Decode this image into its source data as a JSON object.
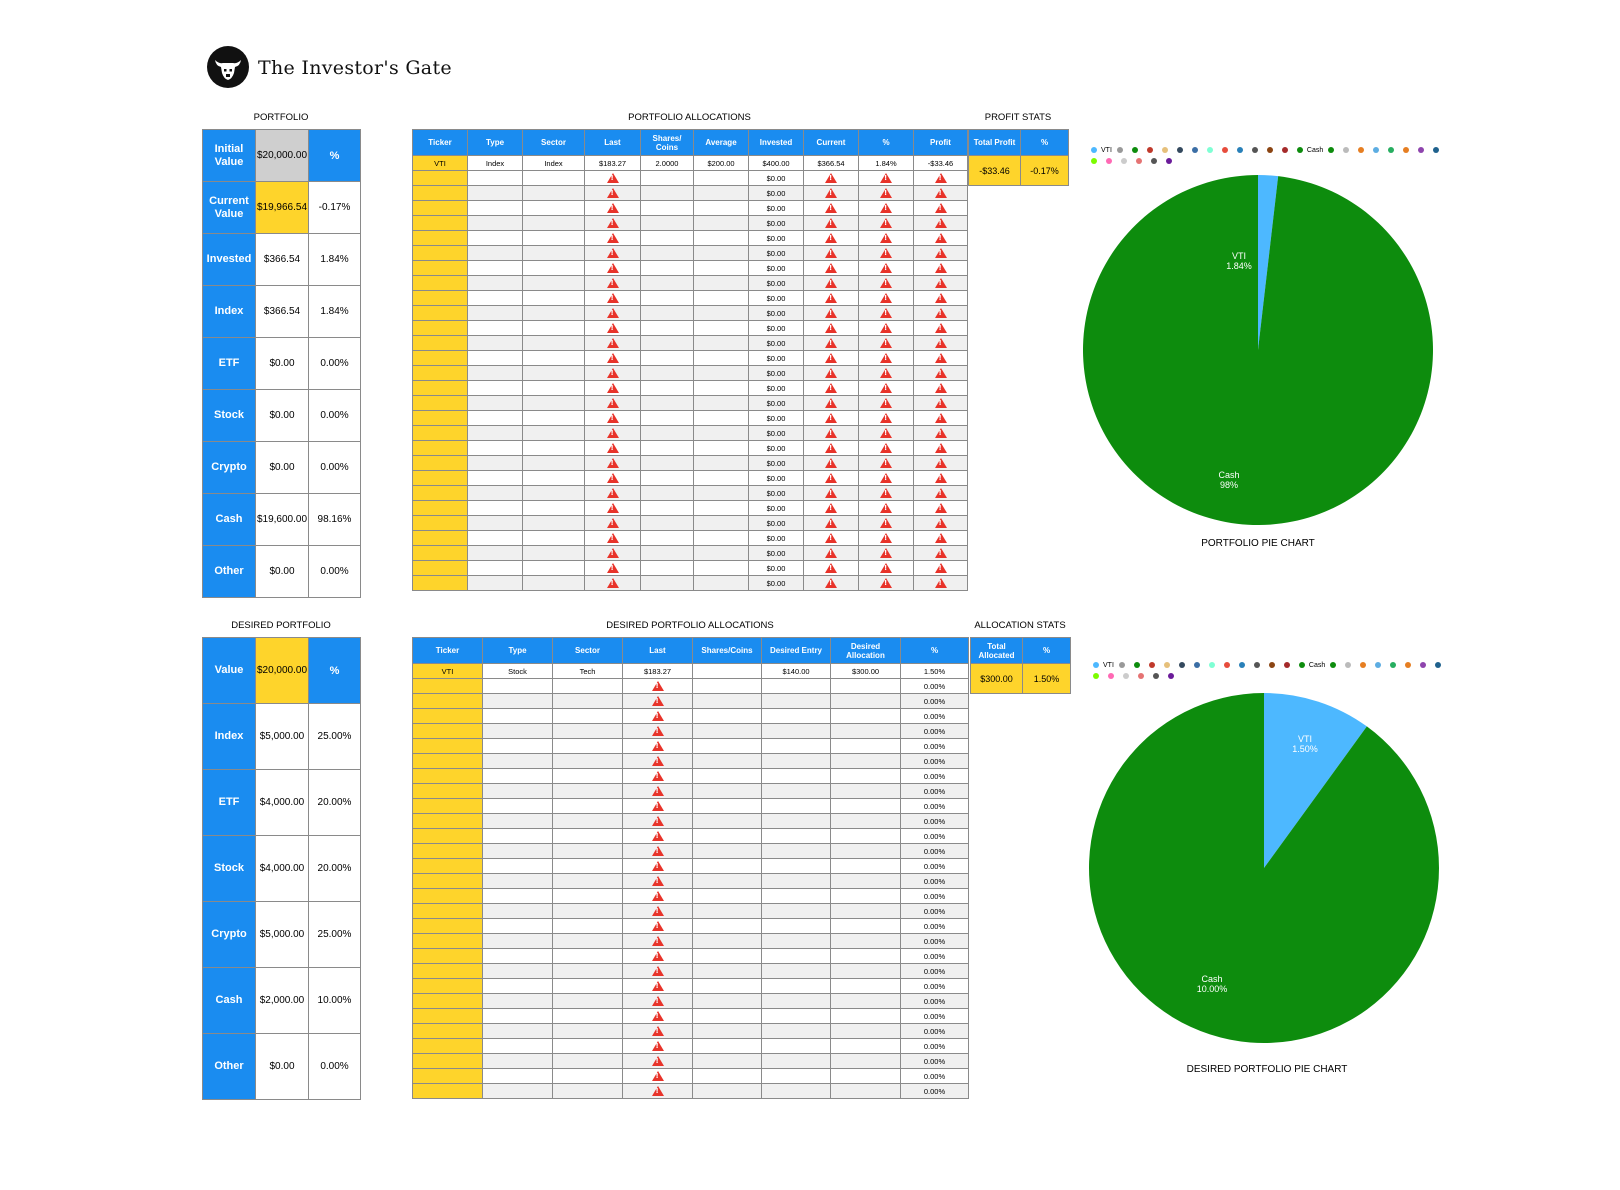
{
  "brand": {
    "name": "The Investor's Gate"
  },
  "colors": {
    "header_blue": "#1a8cf0",
    "highlight_yellow": "#fed42b",
    "initial_gray": "#cfcfcf",
    "pie_cash": "#0d8c0d",
    "pie_vti": "#4db8ff",
    "warning_red": "#e8332a"
  },
  "portfolio": {
    "title": "PORTFOLIO",
    "pct_header": "%",
    "rows": [
      {
        "label": "Initial Value",
        "value": "$20,000.00",
        "pct": ""
      },
      {
        "label": "Current Value",
        "value": "$19,966.54",
        "pct": "-0.17%"
      },
      {
        "label": "Invested",
        "value": "$366.54",
        "pct": "1.84%"
      },
      {
        "label": "Index",
        "value": "$366.54",
        "pct": "1.84%"
      },
      {
        "label": "ETF",
        "value": "$0.00",
        "pct": "0.00%"
      },
      {
        "label": "Stock",
        "value": "$0.00",
        "pct": "0.00%"
      },
      {
        "label": "Crypto",
        "value": "$0.00",
        "pct": "0.00%"
      },
      {
        "label": "Cash",
        "value": "$19,600.00",
        "pct": "98.16%"
      },
      {
        "label": "Other",
        "value": "$0.00",
        "pct": "0.00%"
      }
    ]
  },
  "allocations": {
    "title": "PORTFOLIO ALLOCATIONS",
    "headers": [
      "Ticker",
      "Type",
      "Sector",
      "Last",
      "Shares/ Coins",
      "Average",
      "Invested",
      "Current",
      "%",
      "Profit"
    ],
    "first_row": [
      "VTI",
      "Index",
      "Index",
      "$183.27",
      "2.0000",
      "$200.00",
      "$400.00",
      "$366.54",
      "1.84%",
      "-$33.46"
    ],
    "empty_invested": "$0.00",
    "empty_row_count": 28
  },
  "profit_stats": {
    "title": "PROFIT STATS",
    "headers": [
      "Total Profit",
      "%"
    ],
    "values": [
      "-$33.46",
      "-0.17%"
    ]
  },
  "pie1": {
    "caption": "PORTFOLIO PIE CHART",
    "legend": [
      "VTI",
      "Cash"
    ],
    "slices": [
      {
        "name": "VTI",
        "label": "VTI",
        "pct_label": "1.84%",
        "value": 1.84,
        "color": "#4db8ff"
      },
      {
        "name": "Cash",
        "label": "Cash",
        "pct_label": "98%",
        "value": 98.16,
        "color": "#0d8c0d"
      }
    ]
  },
  "desired": {
    "title": "DESIRED PORTFOLIO",
    "pct_header": "%",
    "rows": [
      {
        "label": "Value",
        "value": "$20,000.00",
        "pct": ""
      },
      {
        "label": "Index",
        "value": "$5,000.00",
        "pct": "25.00%"
      },
      {
        "label": "ETF",
        "value": "$4,000.00",
        "pct": "20.00%"
      },
      {
        "label": "Stock",
        "value": "$4,000.00",
        "pct": "20.00%"
      },
      {
        "label": "Crypto",
        "value": "$5,000.00",
        "pct": "25.00%"
      },
      {
        "label": "Cash",
        "value": "$2,000.00",
        "pct": "10.00%"
      },
      {
        "label": "Other",
        "value": "$0.00",
        "pct": "0.00%"
      }
    ]
  },
  "desired_alloc": {
    "title": "DESIRED PORTFOLIO ALLOCATIONS",
    "headers": [
      "Ticker",
      "Type",
      "Sector",
      "Last",
      "Shares/Coins",
      "Desired Entry",
      "Desired Allocation",
      "%"
    ],
    "first_row": [
      "VTI",
      "Stock",
      "Tech",
      "$183.27",
      "",
      "$140.00",
      "$300.00",
      "1.50%"
    ],
    "empty_pct": "0.00%",
    "empty_row_count": 28
  },
  "allocation_stats": {
    "title": "ALLOCATION STATS",
    "headers": [
      "Total Allocated",
      "%"
    ],
    "values": [
      "$300.00",
      "1.50%"
    ]
  },
  "pie2": {
    "caption": "DESIRED PORTFOLIO PIE CHART",
    "legend": [
      "VTI",
      "Cash"
    ],
    "slices": [
      {
        "name": "VTI",
        "label": "VTI",
        "pct_label": "1.50%",
        "value": 1.5,
        "color": "#4db8ff"
      },
      {
        "name": "Cash",
        "label": "Cash",
        "pct_label": "10.00%",
        "value": 10.0,
        "color": "#0d8c0d"
      }
    ]
  }
}
